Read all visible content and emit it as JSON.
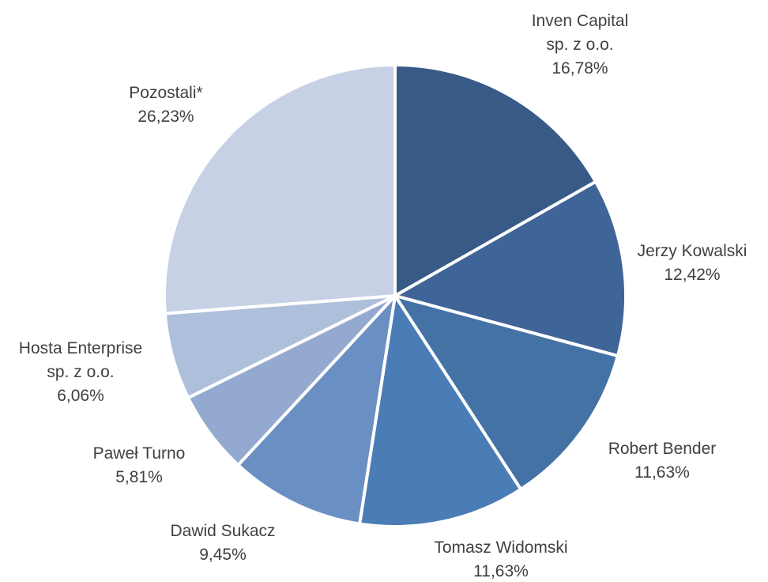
{
  "chart_data": {
    "type": "pie",
    "title": "",
    "slices": [
      {
        "lines": [
          "Inven Capital",
          "sp. z o.o."
        ],
        "value": 16.78,
        "value_label": "16,78%",
        "color": "#375a87"
      },
      {
        "lines": [
          "Jerzy Kowalski"
        ],
        "value": 12.42,
        "value_label": "12,42%",
        "color": "#3f6498"
      },
      {
        "lines": [
          "Robert Bender"
        ],
        "value": 11.63,
        "value_label": "11,63%",
        "color": "#4572a5"
      },
      {
        "lines": [
          "Tomasz Widomski"
        ],
        "value": 11.63,
        "value_label": "11,63%",
        "color": "#4a7cb6"
      },
      {
        "lines": [
          "Dawid Sukacz"
        ],
        "value": 9.45,
        "value_label": "9,45%",
        "color": "#6a8fc3"
      },
      {
        "lines": [
          "Paweł Turno"
        ],
        "value": 5.81,
        "value_label": "5,81%",
        "color": "#93a9d0"
      },
      {
        "lines": [
          "Hosta Enterprise",
          "sp. z o.o."
        ],
        "value": 6.06,
        "value_label": "6,06%",
        "color": "#aebfdb"
      },
      {
        "lines": [
          "Pozostali*"
        ],
        "value": 26.23,
        "value_label": "26,23%",
        "color": "#c7d1e5"
      }
    ],
    "start_angle": "12 o'clock",
    "direction": "clockwise",
    "legend": "none",
    "label_position": "outside"
  }
}
